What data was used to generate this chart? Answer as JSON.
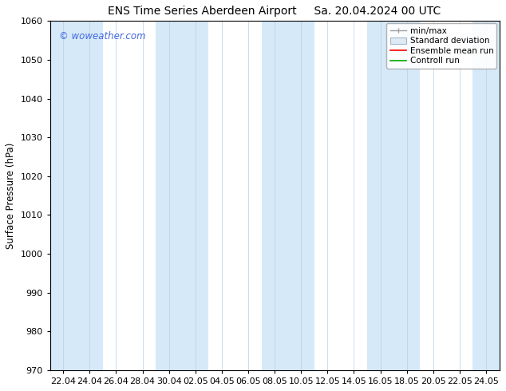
{
  "title_left": "ENS Time Series Aberdeen Airport",
  "title_right": "Sa. 20.04.2024 00 UTC",
  "ylabel": "Surface Pressure (hPa)",
  "ylim": [
    970,
    1060
  ],
  "yticks": [
    970,
    980,
    990,
    1000,
    1010,
    1020,
    1030,
    1040,
    1050,
    1060
  ],
  "xtick_labels": [
    "22.04",
    "24.04",
    "26.04",
    "28.04",
    "30.04",
    "02.05",
    "04.05",
    "06.05",
    "08.05",
    "10.05",
    "12.05",
    "14.05",
    "16.05",
    "18.05",
    "20.05",
    "22.05",
    "24.05"
  ],
  "stripe_color": "#d6e9f8",
  "background_color": "#ffffff",
  "watermark_text": "© woweather.com",
  "watermark_color": "#4169e1",
  "legend_entries": [
    "min/max",
    "Standard deviation",
    "Ensemble mean run",
    "Controll run"
  ],
  "legend_colors": [
    "#a0a0a0",
    "#c8d8e8",
    "#ff0000",
    "#00aa00"
  ],
  "title_fontsize": 10,
  "axis_fontsize": 8.5,
  "tick_fontsize": 8,
  "legend_fontsize": 7.5
}
